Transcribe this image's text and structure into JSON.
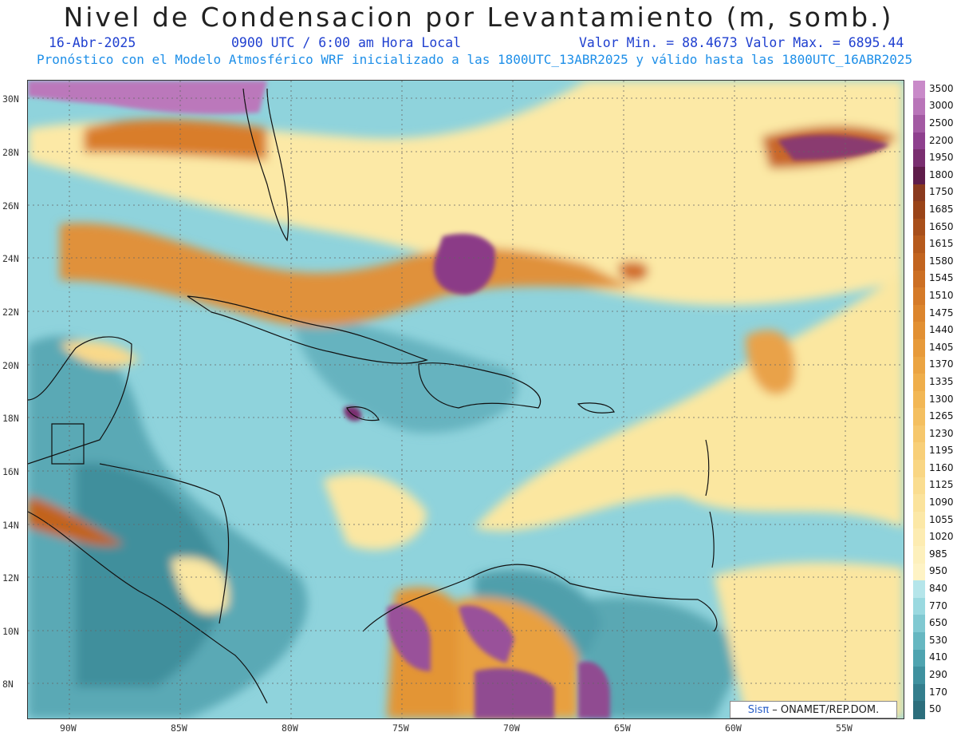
{
  "title": "Nivel de Condensacion por Levantamiento (m, somb.)",
  "date": "16-Abr-2025",
  "time": "0900 UTC / 6:00 am Hora Local",
  "minmax": "Valor Min. = 88.4673  Valor Max. = 6895.44",
  "forecast": "Pronóstico con el Modelo Atmosférico WRF inicializado a las 1800UTC_13ABR2025 y válido hasta las  1800UTC_16ABR2025",
  "lat_labels": [
    "30N",
    "28N",
    "26N",
    "24N",
    "22N",
    "20N",
    "18N",
    "16N",
    "14N",
    "12N",
    "10N",
    "8N"
  ],
  "lon_labels": [
    "90W",
    "85W",
    "80W",
    "75W",
    "70W",
    "65W",
    "60W",
    "55W"
  ],
  "colorbar": {
    "labels": [
      "3500",
      "3000",
      "2500",
      "2200",
      "1950",
      "1800",
      "1750",
      "1685",
      "1650",
      "1615",
      "1580",
      "1545",
      "1510",
      "1475",
      "1440",
      "1405",
      "1370",
      "1335",
      "1300",
      "1265",
      "1230",
      "1195",
      "1160",
      "1125",
      "1090",
      "1055",
      "1020",
      "985",
      "950",
      "840",
      "770",
      "650",
      "530",
      "410",
      "290",
      "170",
      "50"
    ],
    "colors": [
      "#c98ac9",
      "#b975b9",
      "#a35aa3",
      "#8e408e",
      "#7a2f70",
      "#5f1d4a",
      "#8a3a1e",
      "#9a4418",
      "#a84f1a",
      "#b65a1c",
      "#c2641f",
      "#cc6f23",
      "#d57a28",
      "#dc852d",
      "#e29033",
      "#e79a3a",
      "#eba442",
      "#efae4b",
      "#f2b755",
      "#f4bf60",
      "#f6c76c",
      "#f8cf78",
      "#f9d684",
      "#fadd90",
      "#fbe39c",
      "#fce8a7",
      "#fdecb2",
      "#fdf0bc",
      "#fef3c5",
      "#b5e5ea",
      "#9ad9e0",
      "#80c9d2",
      "#66b7c1",
      "#4fa4b0",
      "#3f919f",
      "#347e8d",
      "#2c6e7c"
    ]
  },
  "credit": {
    "brand": "Sisπ",
    "text": "– ONAMET/REP.DOM."
  }
}
